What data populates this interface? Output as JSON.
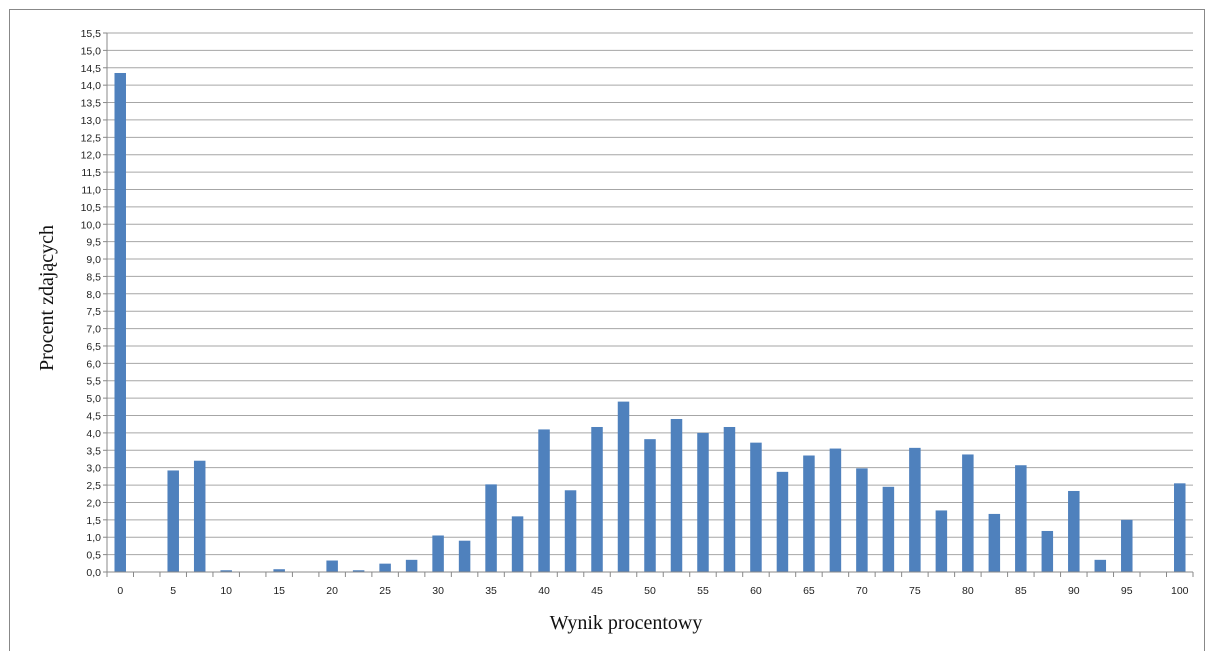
{
  "chart_data": {
    "type": "bar",
    "xlabel": "Wynik procentowy",
    "ylabel": "Procent zdających",
    "ylim": [
      0,
      15.5
    ],
    "ytick_step": 0.5,
    "grid": true,
    "bar_color": "#4f81bd",
    "grid_color": "#a6a6a6",
    "x": [
      0,
      2.5,
      5,
      7.5,
      10,
      12.5,
      15,
      17.5,
      20,
      22.5,
      25,
      27.5,
      30,
      32.5,
      35,
      37.5,
      40,
      42.5,
      45,
      47.5,
      50,
      52.5,
      55,
      57.5,
      60,
      62.5,
      65,
      67.5,
      70,
      72.5,
      75,
      77.5,
      80,
      82.5,
      85,
      87.5,
      90,
      92.5,
      95,
      97.5,
      100
    ],
    "values": [
      14.35,
      0,
      2.92,
      3.2,
      0.05,
      0,
      0.08,
      0,
      0.33,
      0.05,
      0.24,
      0.35,
      1.05,
      0.9,
      2.52,
      1.6,
      4.1,
      2.35,
      4.17,
      4.9,
      3.82,
      4.4,
      4.0,
      4.17,
      3.72,
      2.88,
      3.35,
      3.55,
      2.98,
      2.45,
      3.57,
      1.77,
      3.38,
      1.67,
      3.07,
      1.18,
      2.33,
      0.35,
      1.5,
      0,
      2.55
    ],
    "xticks": [
      "0",
      "5",
      "10",
      "15",
      "20",
      "25",
      "30",
      "35",
      "40",
      "45",
      "50",
      "55",
      "60",
      "65",
      "70",
      "75",
      "80",
      "85",
      "90",
      "95",
      "100"
    ],
    "yticks": [
      "0,0",
      "0,5",
      "1,0",
      "1,5",
      "2,0",
      "2,5",
      "3,0",
      "3,5",
      "4,0",
      "4,5",
      "5,0",
      "5,5",
      "6,0",
      "6,5",
      "7,0",
      "7,5",
      "8,0",
      "8,5",
      "9,0",
      "9,5",
      "10,0",
      "10,5",
      "11,0",
      "11,5",
      "12,0",
      "12,5",
      "13,0",
      "13,5",
      "14,0",
      "14,5",
      "15,0",
      "15,5"
    ]
  }
}
